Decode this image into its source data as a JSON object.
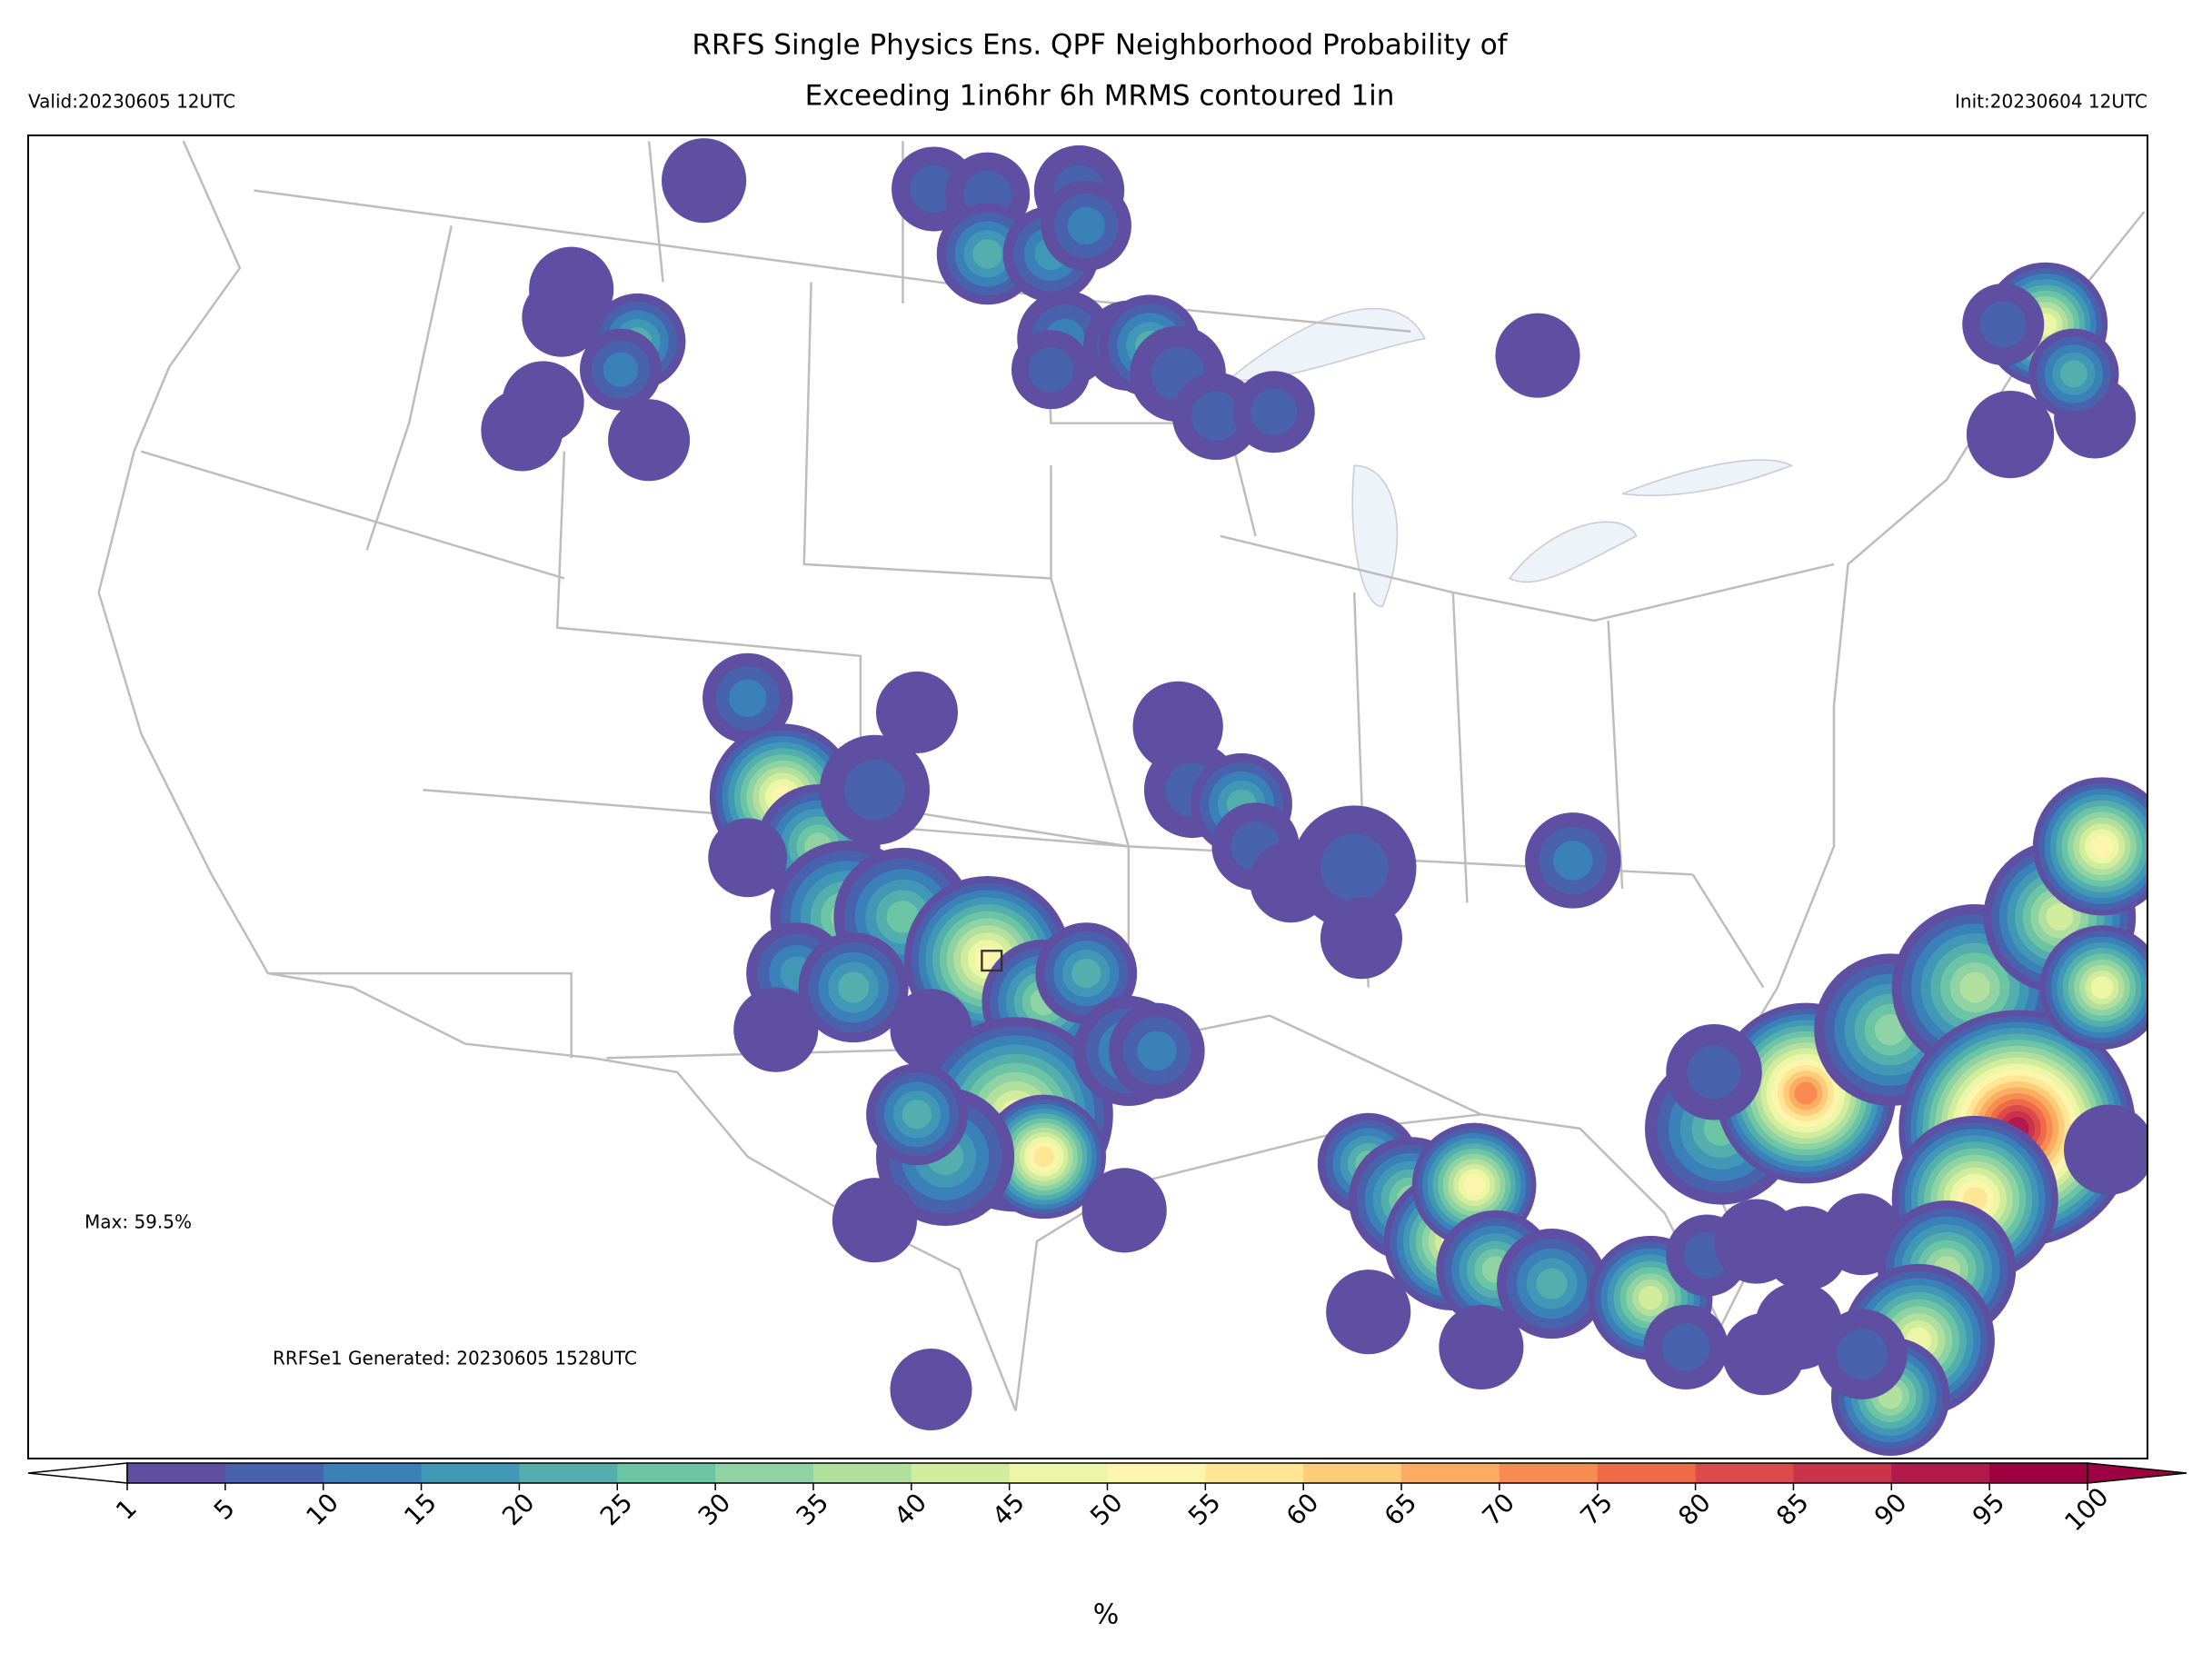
{
  "header": {
    "title_line1": "RRFS Single Physics Ens. QPF Neighborhood Probability of",
    "title_line2": "Exceeding 1in6hr 6h MRMS contoured 1in",
    "valid": "Valid:20230605 12UTC",
    "init": "Init:20230604 12UTC"
  },
  "map": {
    "max_label": "Max: 59.5%",
    "generated": "RRFSe1 Generated: 20230605 1528UTC"
  },
  "colorbar": {
    "ticks": [
      1,
      5,
      10,
      15,
      20,
      25,
      30,
      35,
      40,
      45,
      50,
      55,
      60,
      65,
      70,
      75,
      80,
      85,
      90,
      95,
      100
    ],
    "colors": [
      "#5e4fa2",
      "#4862ad",
      "#3a80b9",
      "#4198b6",
      "#54aead",
      "#6bc4a4",
      "#8fd2a4",
      "#b1df9e",
      "#d1ec9c",
      "#ebf7a6",
      "#fbf5ae",
      "#fee695",
      "#fdcc7a",
      "#fcac63",
      "#f88b51",
      "#ef6a46",
      "#dd4a4c",
      "#cb334c",
      "#b11a4a",
      "#9e0142"
    ],
    "unit": "%"
  }
}
